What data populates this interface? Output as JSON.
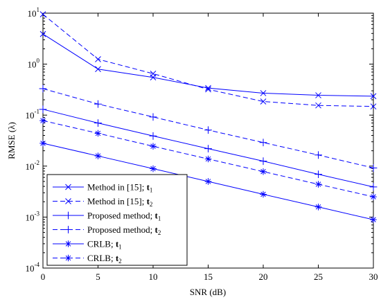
{
  "chart_data": {
    "type": "line",
    "xlabel": "SNR (dB)",
    "ylabel": "RMSE (λ)",
    "xlim": [
      0,
      30
    ],
    "ylim": [
      0.0001,
      10
    ],
    "yscale": "log",
    "x_ticks": [
      "0",
      "5",
      "10",
      "15",
      "20",
      "25",
      "30"
    ],
    "y_ticks": [
      {
        "base": "10",
        "exp": "-4"
      },
      {
        "base": "10",
        "exp": "-3"
      },
      {
        "base": "10",
        "exp": "-2"
      },
      {
        "base": "10",
        "exp": "-1"
      },
      {
        "base": "10",
        "exp": "0"
      },
      {
        "base": "10",
        "exp": "1"
      }
    ],
    "grid": false,
    "legend_position": "bottom-left",
    "line_color": "#0000ff",
    "x": [
      0,
      5,
      10,
      15,
      20,
      25,
      30
    ],
    "series": [
      {
        "label_main": "Method in [15];",
        "label_bold": "t",
        "label_sub": "1",
        "style": "solid",
        "marker": "x",
        "values": [
          3.9,
          0.8,
          0.55,
          0.34,
          0.27,
          0.245,
          0.235
        ]
      },
      {
        "label_main": "Method in [15];",
        "label_bold": "t",
        "label_sub": "2",
        "style": "dashed",
        "marker": "x",
        "values": [
          9.5,
          1.25,
          0.65,
          0.32,
          0.185,
          0.155,
          0.148
        ]
      },
      {
        "label_main": "Proposed method;",
        "label_bold": "t",
        "label_sub": "1",
        "style": "solid",
        "marker": "+",
        "values": [
          0.13,
          0.07,
          0.039,
          0.022,
          0.0125,
          0.0069,
          0.0039
        ]
      },
      {
        "label_main": "Proposed method;",
        "label_bold": "t",
        "label_sub": "2",
        "style": "dashed",
        "marker": "+",
        "values": [
          0.33,
          0.165,
          0.092,
          0.051,
          0.029,
          0.0165,
          0.0092
        ]
      },
      {
        "label_main": "CRLB;",
        "label_bold": "t",
        "label_sub": "1",
        "style": "solid",
        "marker": "*",
        "values": [
          0.028,
          0.0158,
          0.0089,
          0.005,
          0.0028,
          0.00158,
          0.00089
        ]
      },
      {
        "label_main": "CRLB;",
        "label_bold": "t",
        "label_sub": "2",
        "style": "dashed",
        "marker": "*",
        "values": [
          0.078,
          0.044,
          0.0245,
          0.0138,
          0.0078,
          0.0044,
          0.0025
        ]
      }
    ]
  }
}
